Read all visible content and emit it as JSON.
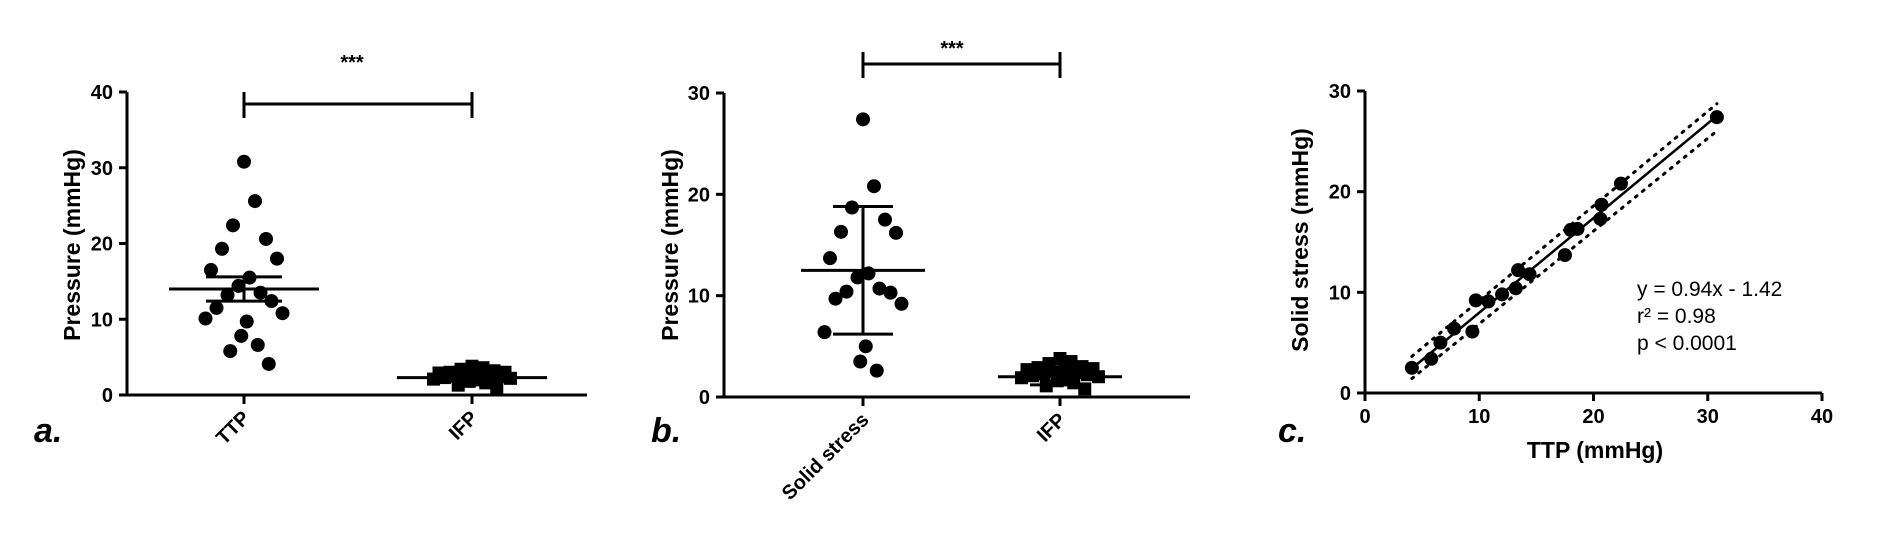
{
  "chart_data": [
    {
      "panel_label": "a.",
      "type": "scatter",
      "ylabel": "Pressure (mmHg)",
      "ylim": [
        0,
        40
      ],
      "yticks": [
        "0",
        "10",
        "20",
        "30",
        "40"
      ],
      "categories": [
        "TTP",
        "IFP"
      ],
      "significance": "***",
      "series": [
        {
          "category": "TTP",
          "marker": "circle",
          "mean": 14.0,
          "sem_low": 12.4,
          "sem_high": 15.6,
          "values": [
            30.8,
            25.6,
            22.4,
            20.6,
            19.3,
            18.0,
            16.5,
            15.5,
            14.4,
            13.5,
            13.2,
            12.4,
            11.5,
            10.8,
            10.1,
            9.7,
            7.8,
            6.6,
            5.8,
            4.1
          ]
        },
        {
          "category": "IFP",
          "marker": "square",
          "mean": 2.3,
          "sem_low": 1.8,
          "sem_high": 2.8,
          "values": [
            3.8,
            3.6,
            3.4,
            3.2,
            3.0,
            3.0,
            2.9,
            2.8,
            2.7,
            2.6,
            2.5,
            2.4,
            2.3,
            2.2,
            2.1,
            2.0,
            1.8,
            1.6,
            1.3,
            0.9
          ]
        }
      ]
    },
    {
      "panel_label": "b.",
      "type": "scatter",
      "ylabel": "Pressure (mmHg)",
      "ylim": [
        0,
        30
      ],
      "yticks": [
        "0",
        "10",
        "20",
        "30"
      ],
      "categories": [
        "Solid stress",
        "IFP"
      ],
      "significance": "***",
      "series": [
        {
          "category": "Solid stress",
          "marker": "circle",
          "mean": 12.5,
          "sd_low": 6.2,
          "sd_high": 18.8,
          "values": [
            27.4,
            20.8,
            18.7,
            17.5,
            16.3,
            16.2,
            13.7,
            12.2,
            11.8,
            10.7,
            10.4,
            10.3,
            9.7,
            9.2,
            6.4,
            5.0,
            3.5,
            2.6
          ]
        },
        {
          "category": "IFP",
          "marker": "square",
          "mean": 2.0,
          "sd_low": 1.2,
          "sd_high": 2.8,
          "values": [
            3.8,
            3.5,
            3.3,
            3.0,
            2.9,
            2.8,
            2.7,
            2.6,
            2.5,
            2.4,
            2.3,
            2.2,
            2.1,
            2.0,
            1.9,
            1.8,
            1.6,
            1.4,
            1.1,
            0.8
          ]
        }
      ]
    },
    {
      "panel_label": "c.",
      "type": "scatter",
      "xlabel": "TTP (mmHg)",
      "ylabel": "Solid stress (mmHg)",
      "xlim": [
        0,
        40
      ],
      "ylim": [
        0,
        30
      ],
      "xticks": [
        "0",
        "10",
        "20",
        "30",
        "40"
      ],
      "yticks": [
        "0",
        "10",
        "20",
        "30"
      ],
      "fit": {
        "slope": 0.94,
        "intercept": -1.42,
        "x_range": [
          4.1,
          30.8
        ]
      },
      "annotations": [
        "y = 0.94x - 1.42",
        "r² = 0.98",
        "p < 0.0001"
      ],
      "points": [
        {
          "x": 4.1,
          "y": 2.5
        },
        {
          "x": 5.8,
          "y": 3.4
        },
        {
          "x": 6.6,
          "y": 5.0
        },
        {
          "x": 7.8,
          "y": 6.4
        },
        {
          "x": 9.4,
          "y": 6.1
        },
        {
          "x": 9.7,
          "y": 9.2
        },
        {
          "x": 10.8,
          "y": 9.1
        },
        {
          "x": 12.0,
          "y": 9.8
        },
        {
          "x": 13.2,
          "y": 10.4
        },
        {
          "x": 13.4,
          "y": 12.2
        },
        {
          "x": 14.4,
          "y": 11.8
        },
        {
          "x": 17.5,
          "y": 13.7
        },
        {
          "x": 18.0,
          "y": 16.2
        },
        {
          "x": 18.6,
          "y": 16.3
        },
        {
          "x": 20.6,
          "y": 17.3
        },
        {
          "x": 20.7,
          "y": 18.7
        },
        {
          "x": 22.4,
          "y": 20.8
        },
        {
          "x": 30.8,
          "y": 27.4
        }
      ]
    }
  ]
}
